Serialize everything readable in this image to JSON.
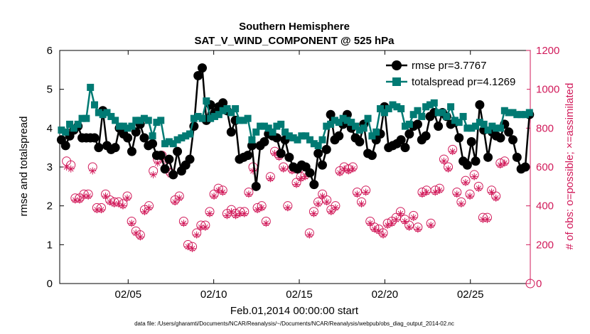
{
  "chart_data": {
    "type": "line",
    "title": "Southern Hemisphere",
    "subtitle": "SAT_V_WIND_COMPONENT @ 525 hPa",
    "xlabel": "Feb.01,2014 00:00:00 start",
    "ylabel_left": "rmse and totalspread",
    "ylabel_right": "# of obs: o=possible; ×=assimilated",
    "footnote": "data file: /Users/gharamti/Documents/NCAR/Reanalysis/~/Documents/NCAR/Reanalysis/webpub/obs_diag_output_2014-02.nc",
    "xlim": [
      1,
      28.5
    ],
    "ylim_left": [
      0,
      6
    ],
    "ylim_right": [
      0,
      1200
    ],
    "x_ticks": [
      {
        "value": 5,
        "label": "02/05"
      },
      {
        "value": 10,
        "label": "02/10"
      },
      {
        "value": 15,
        "label": "02/15"
      },
      {
        "value": 20,
        "label": "02/20"
      },
      {
        "value": 25,
        "label": "02/25"
      }
    ],
    "y_ticks_left": [
      "0",
      "1",
      "2",
      "3",
      "4",
      "5",
      "6"
    ],
    "y_ticks_right": [
      "0",
      "200",
      "400",
      "600",
      "800",
      "1000",
      "1200"
    ],
    "legend_position": "top-right",
    "colors": {
      "rmse": "#000000",
      "totalspread": "#007a73",
      "obs": "#d11a5a",
      "axis": "#000000"
    },
    "series": [
      {
        "name": "rmse pr=3.7767",
        "axis": "left",
        "values": [
          3.7,
          3.55,
          3.8,
          3.95,
          4.05,
          3.75,
          3.75,
          3.75,
          3.75,
          3.5,
          4.45,
          3.55,
          3.45,
          3.5,
          4.0,
          3.85,
          3.75,
          3.4,
          3.9,
          4.1,
          3.75,
          3.55,
          3.6,
          3.3,
          3.3,
          2.95,
          3.2,
          2.8,
          3.4,
          2.9,
          3.05,
          3.2,
          4.05,
          5.35,
          5.55,
          4.2,
          4.6,
          4.4,
          4.55,
          4.65,
          4.45,
          3.9,
          4.2,
          3.2,
          3.25,
          3.3,
          3.55,
          2.5,
          3.55,
          3.65,
          3.85,
          3.8,
          3.75,
          3.35,
          3.7,
          3.25,
          3.0,
          2.95,
          3.05,
          3.0,
          2.85,
          2.55,
          3.35,
          3.05,
          3.45,
          4.35,
          3.7,
          3.8,
          4.1,
          4.35,
          4.0,
          3.75,
          3.65,
          4.1,
          3.35,
          3.3,
          3.7,
          3.85,
          4.55,
          3.5,
          3.55,
          3.6,
          3.7,
          3.5,
          3.85,
          4.05,
          4.1,
          3.7,
          3.8,
          4.3,
          4.4,
          4.05,
          4.4,
          4.3,
          4.1,
          4.15,
          3.75,
          3.15,
          3.05,
          3.65,
          3.15,
          4.6,
          3.95,
          3.25,
          3.9,
          3.8,
          3.75,
          4.1,
          3.9,
          3.7,
          3.25,
          2.95,
          3.0,
          4.35
        ]
      },
      {
        "name": "totalspread pr=4.1269",
        "axis": "left",
        "values": [
          3.95,
          3.9,
          4.1,
          4.0,
          4.1,
          4.25,
          4.25,
          5.05,
          4.6,
          4.4,
          4.35,
          4.4,
          4.3,
          4.2,
          4.05,
          4.05,
          4.0,
          4.05,
          4.2,
          4.2,
          4.25,
          4.2,
          3.8,
          4.15,
          4.2,
          3.6,
          3.65,
          3.6,
          3.7,
          3.75,
          3.8,
          3.85,
          4.25,
          4.3,
          4.25,
          4.7,
          4.25,
          4.3,
          4.35,
          4.45,
          4.5,
          4.4,
          4.5,
          4.2,
          4.2,
          4.25,
          3.7,
          3.9,
          4.05,
          4.05,
          4.0,
          3.9,
          4.05,
          4.1,
          3.9,
          3.8,
          3.75,
          3.7,
          3.8,
          3.8,
          3.7,
          3.6,
          3.55,
          3.7,
          4.05,
          4.1,
          4.2,
          4.15,
          4.25,
          4.2,
          4.15,
          4.05,
          3.95,
          4.0,
          4.25,
          3.8,
          3.9,
          4.5,
          4.4,
          4.5,
          4.6,
          4.55,
          4.5,
          4.05,
          4.1,
          4.35,
          4.45,
          4.3,
          4.55,
          4.6,
          4.65,
          4.4,
          4.4,
          4.3,
          4.55,
          4.2,
          4.15,
          4.3,
          4.0,
          4.0,
          4.05,
          4.15,
          4.1,
          3.95,
          4.05,
          4.0,
          4.0,
          4.45,
          4.4,
          4.4,
          4.35,
          4.35,
          4.35,
          4.4
        ]
      },
      {
        "name": "possible",
        "axis": "right",
        "marker": "circle",
        "values": [
          630,
          610,
          440,
          440,
          460,
          460,
          600,
          390,
          390,
          460,
          430,
          420,
          420,
          410,
          450,
          320,
          270,
          250,
          380,
          400,
          580,
          640,
          660,
          600,
          570,
          430,
          450,
          320,
          200,
          190,
          260,
          300,
          300,
          370,
          460,
          490,
          480,
          360,
          380,
          360,
          370,
          370,
          470,
          600,
          390,
          400,
          320,
          550,
          680,
          660,
          600,
          400,
          590,
          520,
          550,
          560,
          260,
          370,
          420,
          460,
          430,
          380,
          400,
          580,
          600,
          590,
          600,
          470,
          420,
          480,
          320,
          290,
          280,
          260,
          310,
          320,
          340,
          370,
          330,
          300,
          350,
          290,
          470,
          480,
          310,
          480,
          490,
          640,
          600,
          690,
          470,
          420,
          530,
          460,
          560,
          500,
          340,
          340,
          480,
          450,
          620,
          630
        ],
        "assimilated_values": [
          600,
          590,
          430,
          430,
          450,
          450,
          580,
          380,
          380,
          450,
          420,
          410,
          410,
          400,
          440,
          310,
          260,
          240,
          370,
          390,
          560,
          620,
          640,
          580,
          560,
          420,
          440,
          310,
          190,
          180,
          250,
          290,
          290,
          360,
          450,
          480,
          470,
          350,
          370,
          350,
          360,
          360,
          460,
          580,
          380,
          390,
          310,
          540,
          670,
          650,
          590,
          390,
          580,
          510,
          540,
          550,
          250,
          360,
          410,
          450,
          420,
          370,
          390,
          570,
          590,
          580,
          590,
          460,
          410,
          470,
          310,
          280,
          270,
          250,
          300,
          310,
          330,
          360,
          320,
          290,
          340,
          280,
          460,
          470,
          300,
          470,
          480,
          630,
          590,
          680,
          460,
          410,
          520,
          450,
          550,
          490,
          330,
          330,
          470,
          440,
          610,
          620
        ]
      }
    ]
  }
}
